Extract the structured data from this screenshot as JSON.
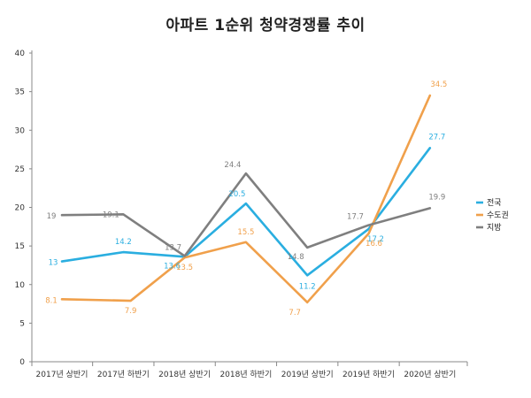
{
  "chart_data": {
    "type": "line",
    "title": "아파트 1순위 청약경쟁률 추이",
    "xlabel": "",
    "ylabel": "",
    "ylim": [
      0,
      40
    ],
    "yticks": [
      0,
      5,
      10,
      15,
      20,
      25,
      30,
      35,
      40
    ],
    "grid": false,
    "legend_position": "right",
    "categories": [
      "2017년 상반기",
      "2017년 하반기",
      "2018년 상반기",
      "2018년 하반기",
      "2019년 상반기",
      "2019년 하반기",
      "2020년 상반기"
    ],
    "x": [
      0,
      1,
      2,
      3,
      4,
      5,
      6
    ],
    "series": [
      {
        "name": "전국",
        "color": "#2aaee0",
        "points_x": [
          0,
          1,
          2,
          3,
          4,
          5,
          6
        ],
        "values": [
          13,
          14.2,
          13.6,
          20.5,
          11.2,
          17.2,
          27.7
        ],
        "labels": [
          "13",
          "14.2",
          "13.6",
          "20.5",
          "11.2",
          "17.2",
          "27.7"
        ]
      },
      {
        "name": "수도권",
        "color": "#f0a04b",
        "points_x": [
          0,
          1.12,
          2,
          3,
          4,
          5,
          6
        ],
        "values": [
          8.1,
          7.9,
          13.5,
          15.5,
          7.7,
          16.6,
          34.5
        ],
        "labels": [
          "8.1",
          "7.9",
          "13.5",
          "15.5",
          "7.7",
          "16.6",
          "34.5"
        ]
      },
      {
        "name": "지방",
        "color": "#7f7f7f",
        "points_x": [
          0,
          1,
          2,
          3,
          4,
          5,
          6
        ],
        "values": [
          19,
          19.1,
          13.7,
          24.4,
          14.8,
          17.7,
          19.9
        ],
        "labels": [
          "19",
          "19.1",
          "13.7",
          "24.4",
          "14.8",
          "17.7",
          "19.9"
        ]
      }
    ]
  }
}
